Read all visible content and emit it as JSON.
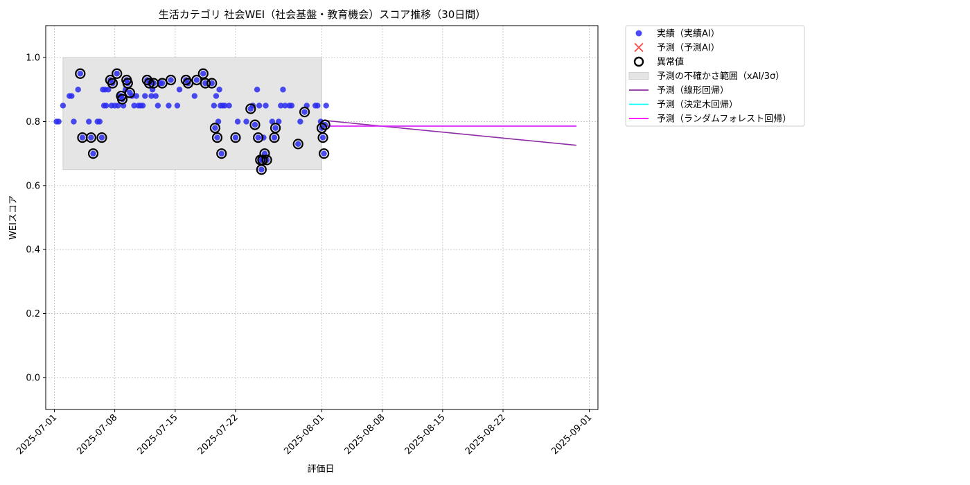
{
  "chart_data": {
    "type": "scatter",
    "title": "生活カテゴリ 社会WEI（社会基盤・教育機会）スコア推移（30日間）",
    "xlabel": "評価日",
    "ylabel": "WEIスコア",
    "xlim": [
      "2025-06-30",
      "2025-09-02"
    ],
    "ylim": [
      -0.1,
      1.1
    ],
    "x_ticks": [
      "2025-07-01",
      "2025-07-08",
      "2025-07-15",
      "2025-07-22",
      "2025-08-01",
      "2025-08-08",
      "2025-08-15",
      "2025-08-22",
      "2025-09-01"
    ],
    "y_ticks": [
      "0.0",
      "0.2",
      "0.4",
      "0.6",
      "0.8",
      "1.0"
    ],
    "grid": true,
    "legend_position": "outside-top-right",
    "uncertainty_band": {
      "x_start": "2025-07-02",
      "x_end": "2025-08-01",
      "y_low": 0.65,
      "y_high": 1.0,
      "color": "#e5e5e5"
    },
    "series": [
      {
        "name": "実績（実績AI）",
        "kind": "scatter",
        "color": "#2b2bf0",
        "points": [
          [
            "2025-07-01 06:00",
            0.8
          ],
          [
            "2025-07-01 12:00",
            0.8
          ],
          [
            "2025-07-02 00:00",
            0.85
          ],
          [
            "2025-07-02 18:00",
            0.88
          ],
          [
            "2025-07-03 00:00",
            0.88
          ],
          [
            "2025-07-03 06:00",
            0.8
          ],
          [
            "2025-07-03 18:00",
            0.9
          ],
          [
            "2025-07-04 00:00",
            0.95
          ],
          [
            "2025-07-04 06:00",
            0.75
          ],
          [
            "2025-07-05 00:00",
            0.8
          ],
          [
            "2025-07-05 06:00",
            0.75
          ],
          [
            "2025-07-05 12:00",
            0.7
          ],
          [
            "2025-07-06 00:00",
            0.8
          ],
          [
            "2025-07-06 06:00",
            0.8
          ],
          [
            "2025-07-06 12:00",
            0.75
          ],
          [
            "2025-07-06 15:00",
            0.9
          ],
          [
            "2025-07-06 18:00",
            0.85
          ],
          [
            "2025-07-06 21:00",
            0.9
          ],
          [
            "2025-07-07 00:00",
            0.85
          ],
          [
            "2025-07-07 06:00",
            0.9
          ],
          [
            "2025-07-07 12:00",
            0.93
          ],
          [
            "2025-07-07 15:00",
            0.85
          ],
          [
            "2025-07-07 18:00",
            0.92
          ],
          [
            "2025-07-08 00:00",
            0.85
          ],
          [
            "2025-07-08 06:00",
            0.95
          ],
          [
            "2025-07-08 09:00",
            0.85
          ],
          [
            "2025-07-08 15:00",
            0.88
          ],
          [
            "2025-07-08 18:00",
            0.88
          ],
          [
            "2025-07-08 21:00",
            0.87
          ],
          [
            "2025-07-09 00:00",
            0.85
          ],
          [
            "2025-07-09 06:00",
            0.9
          ],
          [
            "2025-07-09 09:00",
            0.93
          ],
          [
            "2025-07-09 12:00",
            0.92
          ],
          [
            "2025-07-09 18:00",
            0.89
          ],
          [
            "2025-07-10 00:00",
            0.88
          ],
          [
            "2025-07-10 06:00",
            0.85
          ],
          [
            "2025-07-10 12:00",
            0.88
          ],
          [
            "2025-07-10 18:00",
            0.85
          ],
          [
            "2025-07-11 00:00",
            0.85
          ],
          [
            "2025-07-11 06:00",
            0.85
          ],
          [
            "2025-07-11 12:00",
            0.88
          ],
          [
            "2025-07-11 18:00",
            0.93
          ],
          [
            "2025-07-12 00:00",
            0.92
          ],
          [
            "2025-07-12 06:00",
            0.88
          ],
          [
            "2025-07-12 09:00",
            0.9
          ],
          [
            "2025-07-12 12:00",
            0.92
          ],
          [
            "2025-07-12 18:00",
            0.88
          ],
          [
            "2025-07-13 00:00",
            0.85
          ],
          [
            "2025-07-13 06:00",
            0.92
          ],
          [
            "2025-07-13 12:00",
            0.92
          ],
          [
            "2025-07-14 06:00",
            0.85
          ],
          [
            "2025-07-14 12:00",
            0.93
          ],
          [
            "2025-07-15 06:00",
            0.85
          ],
          [
            "2025-07-15 12:00",
            0.9
          ],
          [
            "2025-07-16 06:00",
            0.93
          ],
          [
            "2025-07-16 12:00",
            0.92
          ],
          [
            "2025-07-17 06:00",
            0.88
          ],
          [
            "2025-07-17 12:00",
            0.93
          ],
          [
            "2025-07-18 06:00",
            0.95
          ],
          [
            "2025-07-18 12:00",
            0.92
          ],
          [
            "2025-07-19 06:00",
            0.92
          ],
          [
            "2025-07-19 12:00",
            0.85
          ],
          [
            "2025-07-19 15:00",
            0.78
          ],
          [
            "2025-07-19 18:00",
            0.88
          ],
          [
            "2025-07-19 21:00",
            0.75
          ],
          [
            "2025-07-20 00:00",
            0.8
          ],
          [
            "2025-07-20 03:00",
            0.9
          ],
          [
            "2025-07-20 06:00",
            0.85
          ],
          [
            "2025-07-20 09:00",
            0.7
          ],
          [
            "2025-07-20 12:00",
            0.85
          ],
          [
            "2025-07-20 18:00",
            0.85
          ],
          [
            "2025-07-21 06:00",
            0.85
          ],
          [
            "2025-07-22 00:00",
            0.75
          ],
          [
            "2025-07-22 06:00",
            0.8
          ],
          [
            "2025-07-23 06:00",
            0.8
          ],
          [
            "2025-07-23 18:00",
            0.84
          ],
          [
            "2025-07-24 00:00",
            0.85
          ],
          [
            "2025-07-24 06:00",
            0.79
          ],
          [
            "2025-07-24 12:00",
            0.9
          ],
          [
            "2025-07-24 15:00",
            0.75
          ],
          [
            "2025-07-24 18:00",
            0.85
          ],
          [
            "2025-07-24 21:00",
            0.68
          ],
          [
            "2025-07-25 00:00",
            0.65
          ],
          [
            "2025-07-25 03:00",
            0.68
          ],
          [
            "2025-07-25 06:00",
            0.75
          ],
          [
            "2025-07-25 09:00",
            0.7
          ],
          [
            "2025-07-25 12:00",
            0.85
          ],
          [
            "2025-07-25 15:00",
            0.68
          ],
          [
            "2025-07-26 06:00",
            0.8
          ],
          [
            "2025-07-26 12:00",
            0.75
          ],
          [
            "2025-07-26 15:00",
            0.78
          ],
          [
            "2025-07-27 00:00",
            0.8
          ],
          [
            "2025-07-27 06:00",
            0.85
          ],
          [
            "2025-07-27 12:00",
            0.9
          ],
          [
            "2025-07-27 18:00",
            0.85
          ],
          [
            "2025-07-28 06:00",
            0.85
          ],
          [
            "2025-07-28 12:00",
            0.85
          ],
          [
            "2025-07-29 06:00",
            0.73
          ],
          [
            "2025-07-29 12:00",
            0.8
          ],
          [
            "2025-07-30 00:00",
            0.83
          ],
          [
            "2025-07-30 06:00",
            0.85
          ],
          [
            "2025-07-31 06:00",
            0.85
          ],
          [
            "2025-07-31 12:00",
            0.85
          ],
          [
            "2025-07-31 21:00",
            0.8
          ],
          [
            "2025-08-01 00:00",
            0.78
          ],
          [
            "2025-08-01 03:00",
            0.75
          ],
          [
            "2025-08-01 06:00",
            0.7
          ],
          [
            "2025-08-01 09:00",
            0.79
          ],
          [
            "2025-08-01 12:00",
            0.85
          ]
        ]
      },
      {
        "name": "予測（予測AI）",
        "kind": "marker-x",
        "color": "#ff4040",
        "points": []
      },
      {
        "name": "異常値",
        "kind": "ring",
        "color": "#000000",
        "points": [
          [
            "2025-07-04 00:00",
            0.95
          ],
          [
            "2025-07-04 06:00",
            0.75
          ],
          [
            "2025-07-05 06:00",
            0.75
          ],
          [
            "2025-07-05 12:00",
            0.7
          ],
          [
            "2025-07-06 12:00",
            0.75
          ],
          [
            "2025-07-07 12:00",
            0.93
          ],
          [
            "2025-07-07 18:00",
            0.92
          ],
          [
            "2025-07-08 06:00",
            0.95
          ],
          [
            "2025-07-08 18:00",
            0.88
          ],
          [
            "2025-07-08 21:00",
            0.87
          ],
          [
            "2025-07-09 09:00",
            0.93
          ],
          [
            "2025-07-09 12:00",
            0.92
          ],
          [
            "2025-07-09 18:00",
            0.89
          ],
          [
            "2025-07-11 18:00",
            0.93
          ],
          [
            "2025-07-12 00:00",
            0.92
          ],
          [
            "2025-07-12 12:00",
            0.92
          ],
          [
            "2025-07-13 12:00",
            0.92
          ],
          [
            "2025-07-14 12:00",
            0.93
          ],
          [
            "2025-07-16 06:00",
            0.93
          ],
          [
            "2025-07-16 12:00",
            0.92
          ],
          [
            "2025-07-17 12:00",
            0.93
          ],
          [
            "2025-07-18 06:00",
            0.95
          ],
          [
            "2025-07-18 12:00",
            0.92
          ],
          [
            "2025-07-19 06:00",
            0.92
          ],
          [
            "2025-07-19 15:00",
            0.78
          ],
          [
            "2025-07-19 21:00",
            0.75
          ],
          [
            "2025-07-20 09:00",
            0.7
          ],
          [
            "2025-07-22 00:00",
            0.75
          ],
          [
            "2025-07-23 18:00",
            0.84
          ],
          [
            "2025-07-24 06:00",
            0.79
          ],
          [
            "2025-07-24 15:00",
            0.75
          ],
          [
            "2025-07-24 21:00",
            0.68
          ],
          [
            "2025-07-25 00:00",
            0.65
          ],
          [
            "2025-07-25 03:00",
            0.68
          ],
          [
            "2025-07-25 09:00",
            0.7
          ],
          [
            "2025-07-25 15:00",
            0.68
          ],
          [
            "2025-07-26 12:00",
            0.75
          ],
          [
            "2025-07-26 15:00",
            0.78
          ],
          [
            "2025-07-29 06:00",
            0.73
          ],
          [
            "2025-07-30 00:00",
            0.83
          ],
          [
            "2025-08-01 00:00",
            0.78
          ],
          [
            "2025-08-01 03:00",
            0.75
          ],
          [
            "2025-08-01 06:00",
            0.7
          ],
          [
            "2025-08-01 09:00",
            0.79
          ]
        ]
      },
      {
        "name": "予測の不確かさ範囲（xAI/3σ）",
        "kind": "band",
        "color": "#e5e5e5"
      },
      {
        "name": "予測（線形回帰）",
        "kind": "line",
        "color": "#8e2ca5",
        "points": [
          [
            "2025-08-01 12:00",
            0.803
          ],
          [
            "2025-08-30 12:00",
            0.726
          ]
        ]
      },
      {
        "name": "予測（決定木回帰）",
        "kind": "line",
        "color": "#00ffff",
        "points": [
          [
            "2025-08-01 12:00",
            0.786
          ],
          [
            "2025-08-30 12:00",
            0.786
          ]
        ]
      },
      {
        "name": "予測（ランダムフォレスト回帰）",
        "kind": "line",
        "color": "#ff00ff",
        "points": [
          [
            "2025-08-01 12:00",
            0.786
          ],
          [
            "2025-08-30 12:00",
            0.786
          ]
        ]
      }
    ]
  }
}
